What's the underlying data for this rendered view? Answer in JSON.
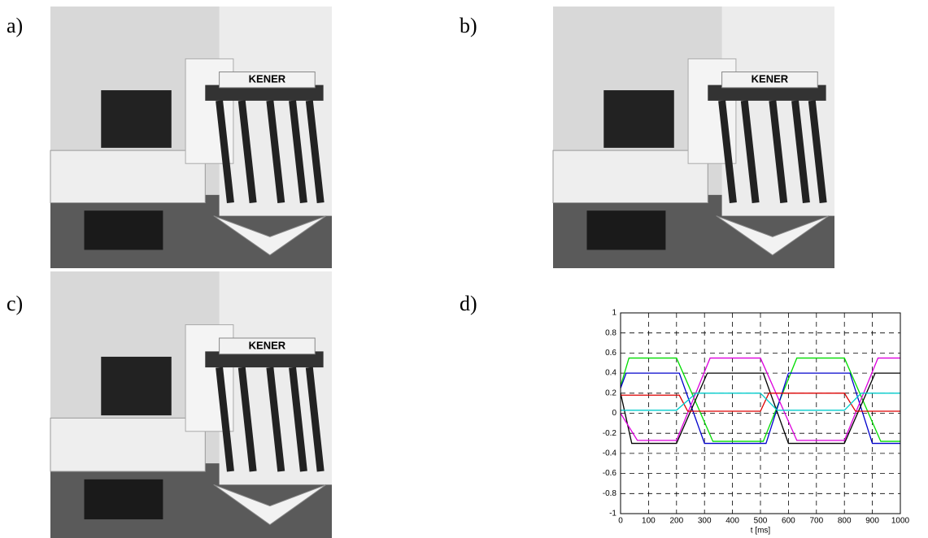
{
  "photos": [
    {
      "label": "a)",
      "sign": "KENER"
    },
    {
      "label": "b)",
      "sign": "KENER"
    },
    {
      "label": "c)",
      "sign": "KENER"
    }
  ],
  "chart_label": "d)",
  "chart_data": {
    "type": "line",
    "xlabel": "t [ms]",
    "xlim": [
      0,
      1000
    ],
    "xticks": [
      0,
      100,
      200,
      300,
      400,
      500,
      600,
      700,
      800,
      900,
      1000
    ],
    "ylim": [
      -1,
      1
    ],
    "yticks": [
      -1,
      -0.8,
      -0.6,
      -0.4,
      -0.2,
      0,
      0.2,
      0.4,
      0.6,
      0.8,
      1
    ],
    "grid": true,
    "series": [
      {
        "color": "#00dd00",
        "x": [
          0,
          30,
          200,
          330,
          510,
          630,
          800,
          930,
          1000
        ],
        "values": [
          0.27,
          0.55,
          0.55,
          -0.28,
          -0.28,
          0.55,
          0.55,
          -0.28,
          -0.28
        ]
      },
      {
        "color": "#0000cc",
        "x": [
          0,
          20,
          210,
          300,
          520,
          600,
          820,
          900,
          1000
        ],
        "values": [
          0.25,
          0.4,
          0.4,
          -0.3,
          -0.3,
          0.4,
          0.4,
          -0.3,
          -0.3
        ]
      },
      {
        "color": "#000000",
        "x": [
          0,
          40,
          200,
          310,
          510,
          600,
          800,
          910,
          1000
        ],
        "values": [
          0.2,
          -0.3,
          -0.3,
          0.4,
          0.4,
          -0.3,
          -0.3,
          0.4,
          0.4
        ]
      },
      {
        "color": "#dd00dd",
        "x": [
          0,
          60,
          200,
          320,
          500,
          630,
          800,
          920,
          1000
        ],
        "values": [
          0,
          -0.27,
          -0.27,
          0.55,
          0.55,
          -0.27,
          -0.27,
          0.55,
          0.55
        ]
      },
      {
        "color": "#dd0000",
        "x": [
          0,
          210,
          240,
          500,
          530,
          800,
          840,
          1000
        ],
        "values": [
          0.18,
          0.18,
          0.02,
          0.02,
          0.2,
          0.2,
          0.02,
          0.02
        ]
      },
      {
        "color": "#00cccc",
        "x": [
          0,
          200,
          270,
          500,
          560,
          800,
          860,
          1000
        ],
        "values": [
          0.03,
          0.03,
          0.2,
          0.2,
          0.03,
          0.03,
          0.2,
          0.2
        ]
      }
    ]
  }
}
